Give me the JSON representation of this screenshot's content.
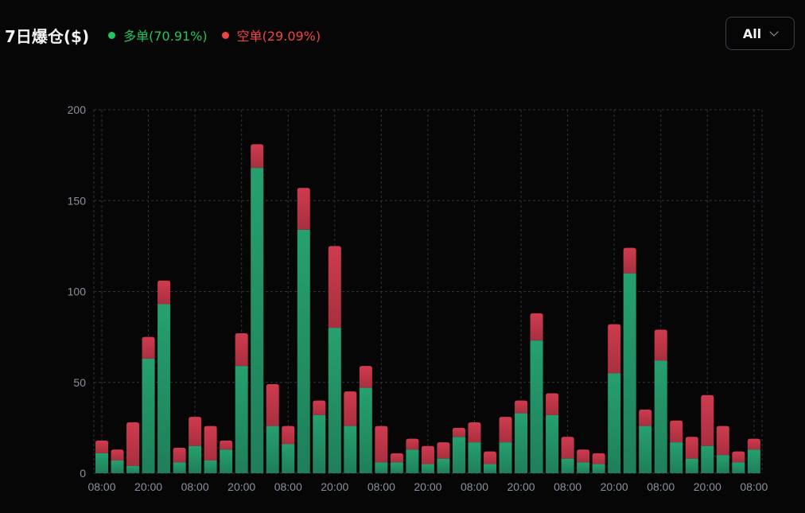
{
  "header": {
    "title": "7日爆仓($)",
    "long_label": "多单(70.91%)",
    "short_label": "空单(29.09%)",
    "filter_value": "All"
  },
  "colors": {
    "long": "#22c55e",
    "short": "#ef4444",
    "bar_long": "#23966a",
    "bar_short": "#c5384d"
  },
  "chart_data": {
    "type": "bar",
    "stacked": true,
    "title": "7日爆仓($)",
    "ylim": [
      0,
      200
    ],
    "yticks": [
      0,
      50,
      100,
      150,
      200
    ],
    "grid": true,
    "legend_placement": "top-left",
    "xtick_labels": [
      "08:00",
      "20:00",
      "08:00",
      "20:00",
      "08:00",
      "20:00",
      "08:00",
      "20:00",
      "08:00",
      "20:00",
      "08:00",
      "20:00",
      "08:00",
      "20:00",
      "08:00"
    ],
    "xtick_every": 3,
    "series": [
      {
        "name": "多单",
        "values": [
          11,
          7,
          4,
          63,
          93,
          6,
          15,
          7,
          13,
          59,
          168,
          26,
          16,
          134,
          32,
          80,
          26,
          47,
          6,
          6,
          13,
          5,
          8,
          20,
          17,
          5,
          17,
          33,
          73,
          32,
          8,
          6,
          5,
          55,
          110,
          26,
          62,
          17,
          8,
          15,
          10,
          6,
          13
        ]
      },
      {
        "name": "空单",
        "values": [
          7,
          6,
          24,
          12,
          13,
          8,
          16,
          19,
          5,
          18,
          13,
          23,
          10,
          23,
          8,
          45,
          19,
          12,
          20,
          5,
          6,
          10,
          9,
          5,
          11,
          7,
          14,
          7,
          15,
          12,
          12,
          7,
          6,
          27,
          14,
          9,
          17,
          12,
          12,
          28,
          16,
          6,
          6
        ]
      }
    ]
  }
}
